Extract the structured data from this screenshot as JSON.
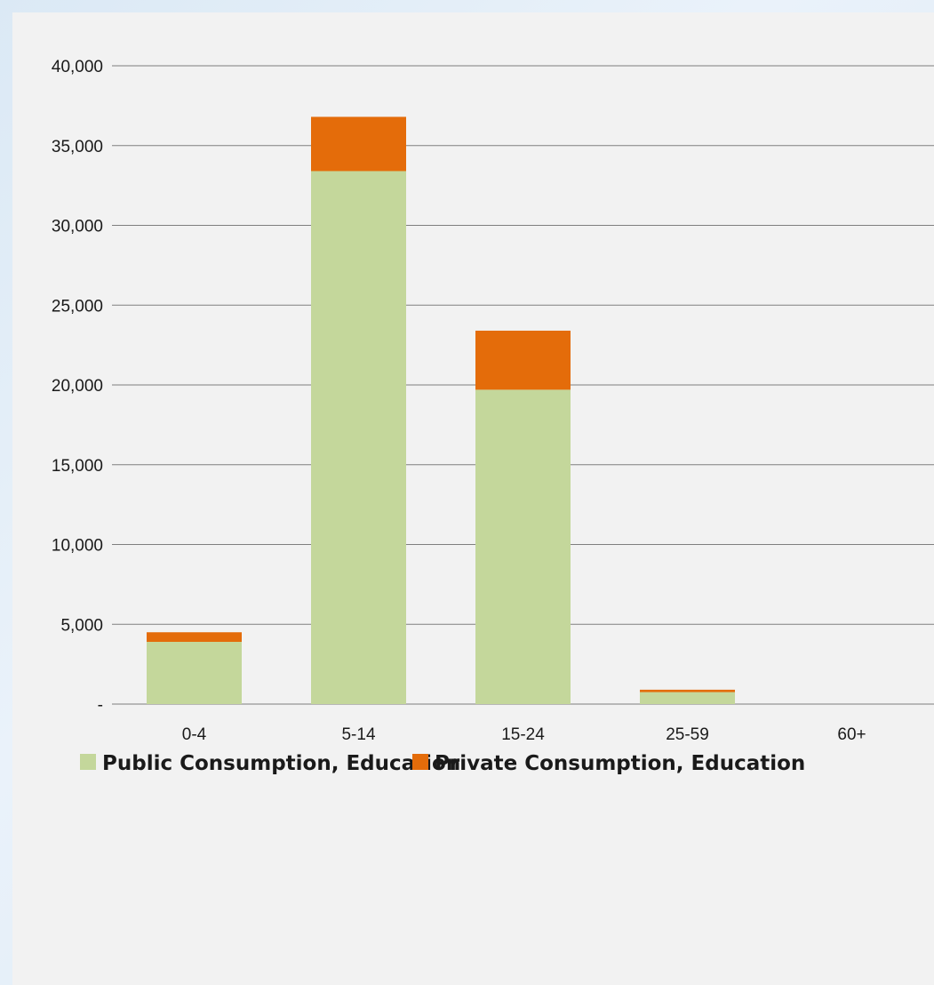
{
  "chart_data": {
    "type": "bar",
    "stacked": true,
    "categories": [
      "0-4",
      "5-14",
      "15-24",
      "25-59",
      "60+"
    ],
    "series": [
      {
        "name": "Public Consumption, Education",
        "color": "#c4d79b",
        "values": [
          3900,
          33400,
          19700,
          750,
          0
        ]
      },
      {
        "name": "Private Consumption, Education",
        "color": "#e46c0a",
        "values": [
          600,
          3400,
          3700,
          150,
          0
        ]
      }
    ],
    "title": "",
    "xlabel": "",
    "ylabel": "",
    "ylim": [
      0,
      40000
    ],
    "yticks": [
      0,
      5000,
      10000,
      15000,
      20000,
      25000,
      30000,
      35000,
      40000
    ],
    "ytick_labels": [
      "-",
      "5,000",
      "10,000",
      "15,000",
      "20,000",
      "25,000",
      "30,000",
      "35,000",
      "40,000"
    ],
    "grid": true,
    "legend": "bottom"
  }
}
